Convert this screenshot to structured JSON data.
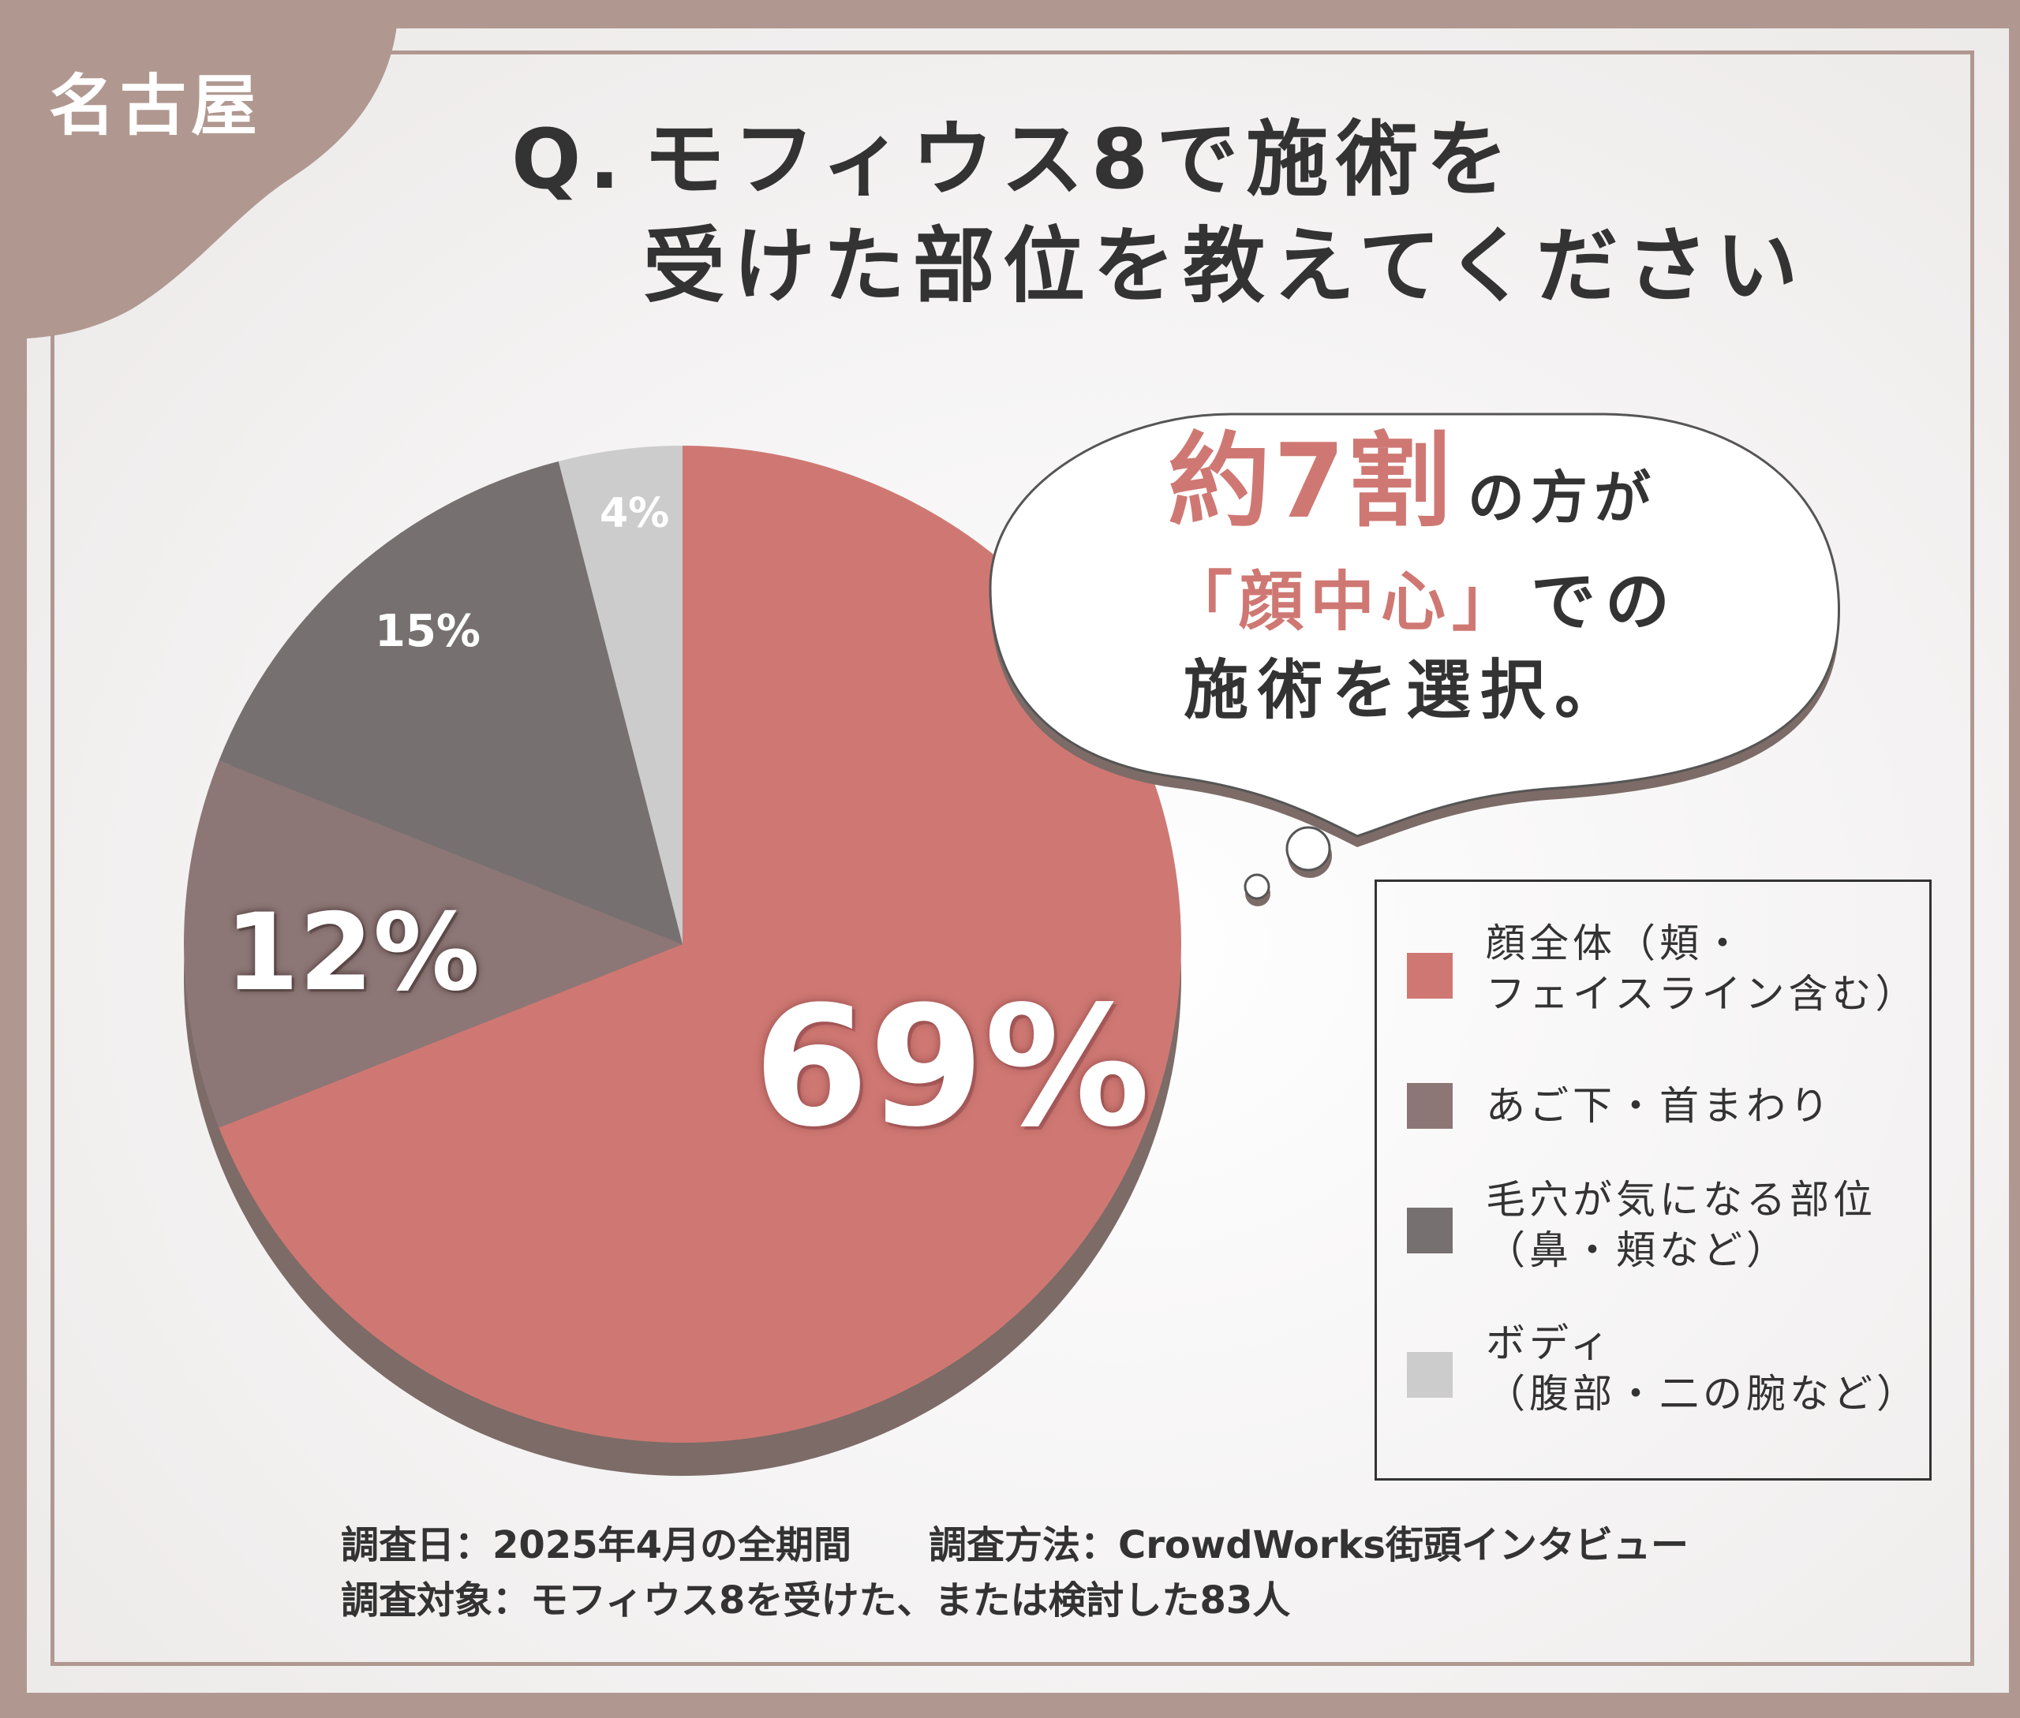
{
  "city_tag": "名古屋",
  "title": {
    "q_prefix": "Q.",
    "line1": "モフィウス8で施術を",
    "line2": "受けた部位を教えてください"
  },
  "callout": {
    "highlight1": "約7割",
    "text1": "の方が",
    "highlight2": "「顔中心」",
    "text2": "での",
    "text3": "施術を選択。"
  },
  "footer": {
    "survey_date": "調査日：2025年4月の全期間",
    "survey_method": "調査方法：CrowdWorks街頭インタビュー",
    "survey_target": "調査対象：モフィウス8を受けた、または検討した83人"
  },
  "chart_data": {
    "type": "pie",
    "unit": "%",
    "slices": [
      {
        "label_lines": [
          "顔全体（頬・",
          "フェイスライン含む）"
        ],
        "value": 69,
        "value_label": "69%",
        "color": "#cf7873"
      },
      {
        "label_lines": [
          "あご下・首まわり"
        ],
        "value": 12,
        "value_label": "12%",
        "color": "#8c7776"
      },
      {
        "label_lines": [
          "毛穴が気になる部位",
          "（鼻・頬など）"
        ],
        "value": 15,
        "value_label": "15%",
        "color": "#767070"
      },
      {
        "label_lines": [
          "ボディ",
          "（腹部・二の腕など）"
        ],
        "value": 4,
        "value_label": "4%",
        "color": "#cccccc"
      }
    ],
    "start_angle": "12 o'clock",
    "direction": "clockwise",
    "legend_position": "right"
  }
}
